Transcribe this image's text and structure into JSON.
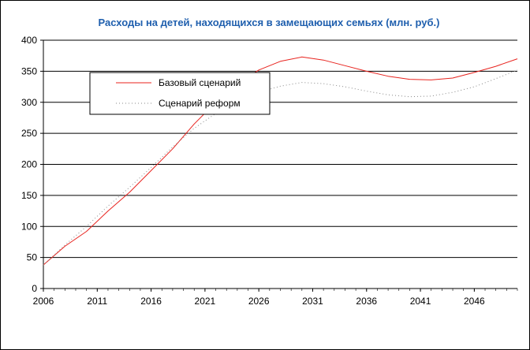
{
  "chart_data": {
    "type": "line",
    "title": "Расходы на детей, находящихся в замещающих семьях (млн. руб.)",
    "title_color": "#1F5FAE",
    "xlabel": "",
    "ylabel": "",
    "xlim": [
      2006,
      2050
    ],
    "ylim": [
      0,
      400
    ],
    "x_ticks": [
      "2006",
      "2011",
      "2016",
      "2021",
      "2026",
      "2031",
      "2036",
      "2041",
      "2046"
    ],
    "y_ticks": [
      "0",
      "50",
      "100",
      "150",
      "200",
      "250",
      "300",
      "350",
      "400"
    ],
    "grid": "horizontal",
    "legend_position": "top-left",
    "series": [
      {
        "name": "Базовый сценарий",
        "color": "#E8231E",
        "style": "solid",
        "x": [
          2006,
          2008,
          2010,
          2012,
          2014,
          2016,
          2018,
          2020,
          2022,
          2024,
          2026,
          2028,
          2030,
          2032,
          2034,
          2036,
          2038,
          2040,
          2042,
          2044,
          2046,
          2048,
          2050
        ],
        "y": [
          38,
          68,
          92,
          125,
          155,
          190,
          225,
          265,
          300,
          330,
          352,
          366,
          373,
          368,
          359,
          350,
          342,
          337,
          336,
          339,
          348,
          358,
          370
        ]
      },
      {
        "name": "Сценарий реформ",
        "color": "#888888",
        "style": "dotted",
        "x": [
          2006,
          2008,
          2010,
          2012,
          2014,
          2016,
          2018,
          2020,
          2022,
          2024,
          2026,
          2028,
          2030,
          2032,
          2034,
          2036,
          2038,
          2040,
          2042,
          2044,
          2046,
          2048,
          2050
        ],
        "y": [
          38,
          70,
          100,
          133,
          163,
          195,
          228,
          258,
          282,
          302,
          316,
          326,
          332,
          330,
          325,
          318,
          312,
          309,
          310,
          316,
          325,
          338,
          352
        ]
      }
    ]
  }
}
